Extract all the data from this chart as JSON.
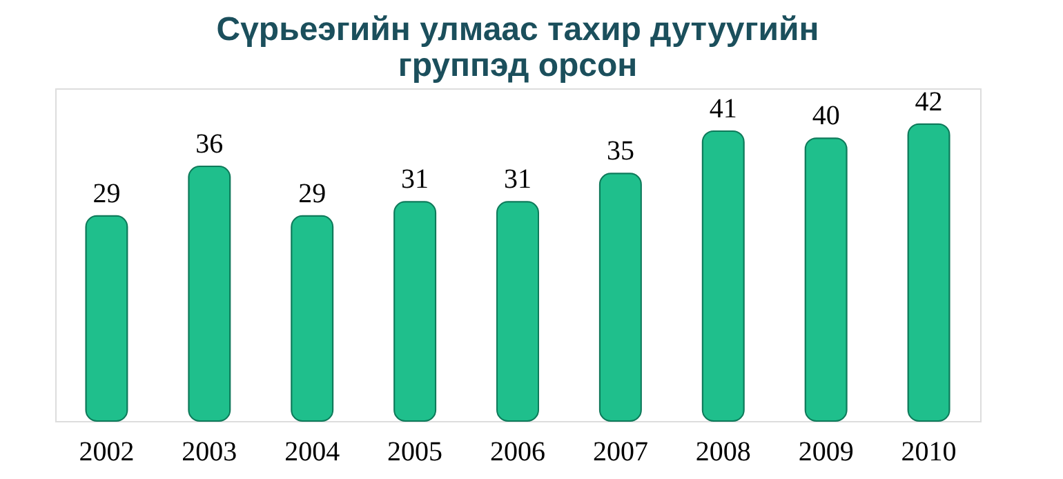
{
  "chart_data": {
    "type": "bar",
    "title": [
      "Сүрьеэгийн улмаас тахир дутуугийн",
      "группэд орсон"
    ],
    "categories": [
      "2002",
      "2003",
      "2004",
      "2005",
      "2006",
      "2007",
      "2008",
      "2009",
      "2010"
    ],
    "values": [
      29,
      36,
      29,
      31,
      31,
      35,
      41,
      40,
      42
    ],
    "color": "#1fbf8c",
    "data_labels": true,
    "grid": false
  }
}
